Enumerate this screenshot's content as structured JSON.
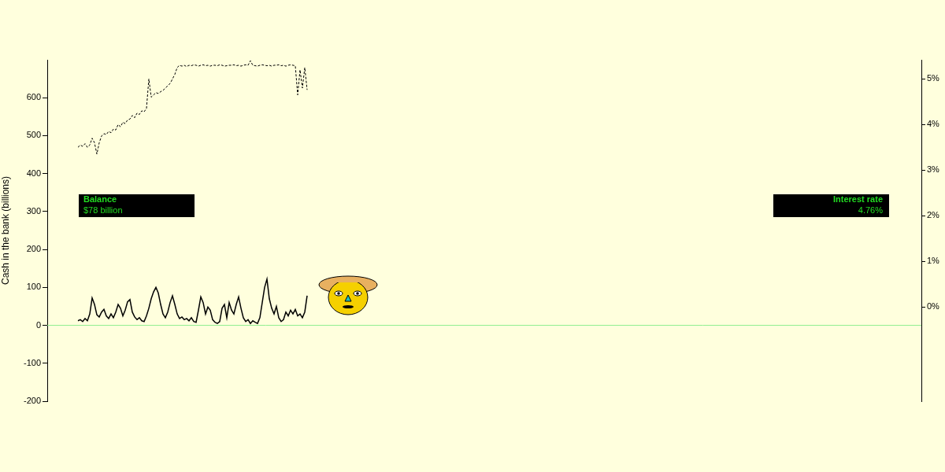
{
  "chart_data": {
    "type": "line",
    "y_label": "Cash in the bank (billions)",
    "xlim": [
      -13,
      357
    ],
    "ylim": [
      -200,
      700
    ],
    "yticks": [
      -200,
      -100,
      0,
      100,
      200,
      300,
      400,
      500,
      600
    ],
    "y2lim": [
      -2.07,
      5.42
    ],
    "y2ticks": [
      {
        "value": 0,
        "label": "0%"
      },
      {
        "value": 1,
        "label": "1%"
      },
      {
        "value": 2,
        "label": "2%"
      },
      {
        "value": 3,
        "label": "3%"
      },
      {
        "value": 4,
        "label": "4%"
      },
      {
        "value": 5,
        "label": "5%"
      }
    ],
    "grid": false,
    "legend": "none",
    "tick_labels": "y",
    "x": [
      0,
      1,
      2,
      3,
      4,
      5,
      6,
      7,
      8,
      9,
      10,
      11,
      12,
      13,
      14,
      15,
      16,
      17,
      18,
      19,
      20,
      21,
      22,
      23,
      24,
      25,
      26,
      27,
      28,
      29,
      30,
      31,
      32,
      33,
      34,
      35,
      36,
      37,
      38,
      39,
      40,
      41,
      42,
      43,
      44,
      45,
      46,
      47,
      48,
      49,
      50,
      51,
      52,
      53,
      54,
      55,
      56,
      57,
      58,
      59,
      60,
      61,
      62,
      63,
      64,
      65,
      66,
      67,
      68,
      69,
      70,
      71,
      72,
      73,
      74,
      75,
      76,
      77,
      78,
      79,
      80,
      81,
      82,
      83,
      84,
      85,
      86,
      87,
      88,
      89,
      90,
      91,
      92,
      93,
      94,
      95,
      96,
      97
    ],
    "series": [
      {
        "name": "Balance",
        "color": "#000000",
        "line_style": "solid",
        "values": [
          12,
          15,
          10,
          18,
          12,
          30,
          72,
          55,
          28,
          22,
          35,
          42,
          25,
          18,
          30,
          20,
          35,
          55,
          45,
          25,
          40,
          62,
          68,
          35,
          22,
          15,
          20,
          12,
          10,
          25,
          45,
          70,
          88,
          100,
          85,
          55,
          30,
          20,
          35,
          60,
          78,
          55,
          30,
          18,
          22,
          15,
          18,
          12,
          20,
          10,
          8,
          40,
          75,
          60,
          30,
          48,
          40,
          15,
          8,
          5,
          10,
          45,
          55,
          20,
          60,
          40,
          30,
          55,
          75,
          45,
          20,
          10,
          15,
          5,
          12,
          8,
          5,
          20,
          60,
          100,
          122,
          70,
          45,
          30,
          50,
          20,
          10,
          15,
          35,
          25,
          40,
          30,
          42,
          25,
          30,
          20,
          35,
          78
        ]
      },
      {
        "name": "Interest rate",
        "color": "#000000",
        "line_style": "dashed",
        "axis": "y2",
        "values": [
          3.5,
          3.55,
          3.52,
          3.58,
          3.5,
          3.55,
          3.7,
          3.6,
          3.35,
          3.6,
          3.75,
          3.8,
          3.78,
          3.85,
          3.82,
          3.9,
          3.88,
          4.0,
          3.95,
          4.05,
          4.02,
          4.1,
          4.12,
          4.2,
          4.15,
          4.25,
          4.22,
          4.3,
          4.28,
          4.35,
          5.0,
          4.6,
          4.65,
          4.7,
          4.68,
          4.72,
          4.75,
          4.8,
          4.85,
          4.9,
          5.0,
          5.1,
          5.25,
          5.3,
          5.28,
          5.3,
          5.27,
          5.3,
          5.29,
          5.31,
          5.3,
          5.28,
          5.3,
          5.31,
          5.29,
          5.3,
          5.28,
          5.3,
          5.3,
          5.29,
          5.31,
          5.3,
          5.28,
          5.29,
          5.3,
          5.3,
          5.31,
          5.29,
          5.3,
          5.28,
          5.3,
          5.31,
          5.3,
          5.4,
          5.3,
          5.29,
          5.28,
          5.3,
          5.31,
          5.3,
          5.29,
          5.3,
          5.28,
          5.3,
          5.3,
          5.31,
          5.29,
          5.3,
          5.28,
          5.3,
          5.31,
          5.3,
          5.29,
          4.65,
          5.2,
          4.8,
          5.25,
          4.76
        ]
      }
    ],
    "reference_lines": [
      {
        "y": 0,
        "color": "#90ee90"
      }
    ],
    "annotations": [
      {
        "title": "Balance",
        "text": "$78 billion"
      },
      {
        "title": "Interest rate",
        "text": "4.76%"
      }
    ]
  }
}
